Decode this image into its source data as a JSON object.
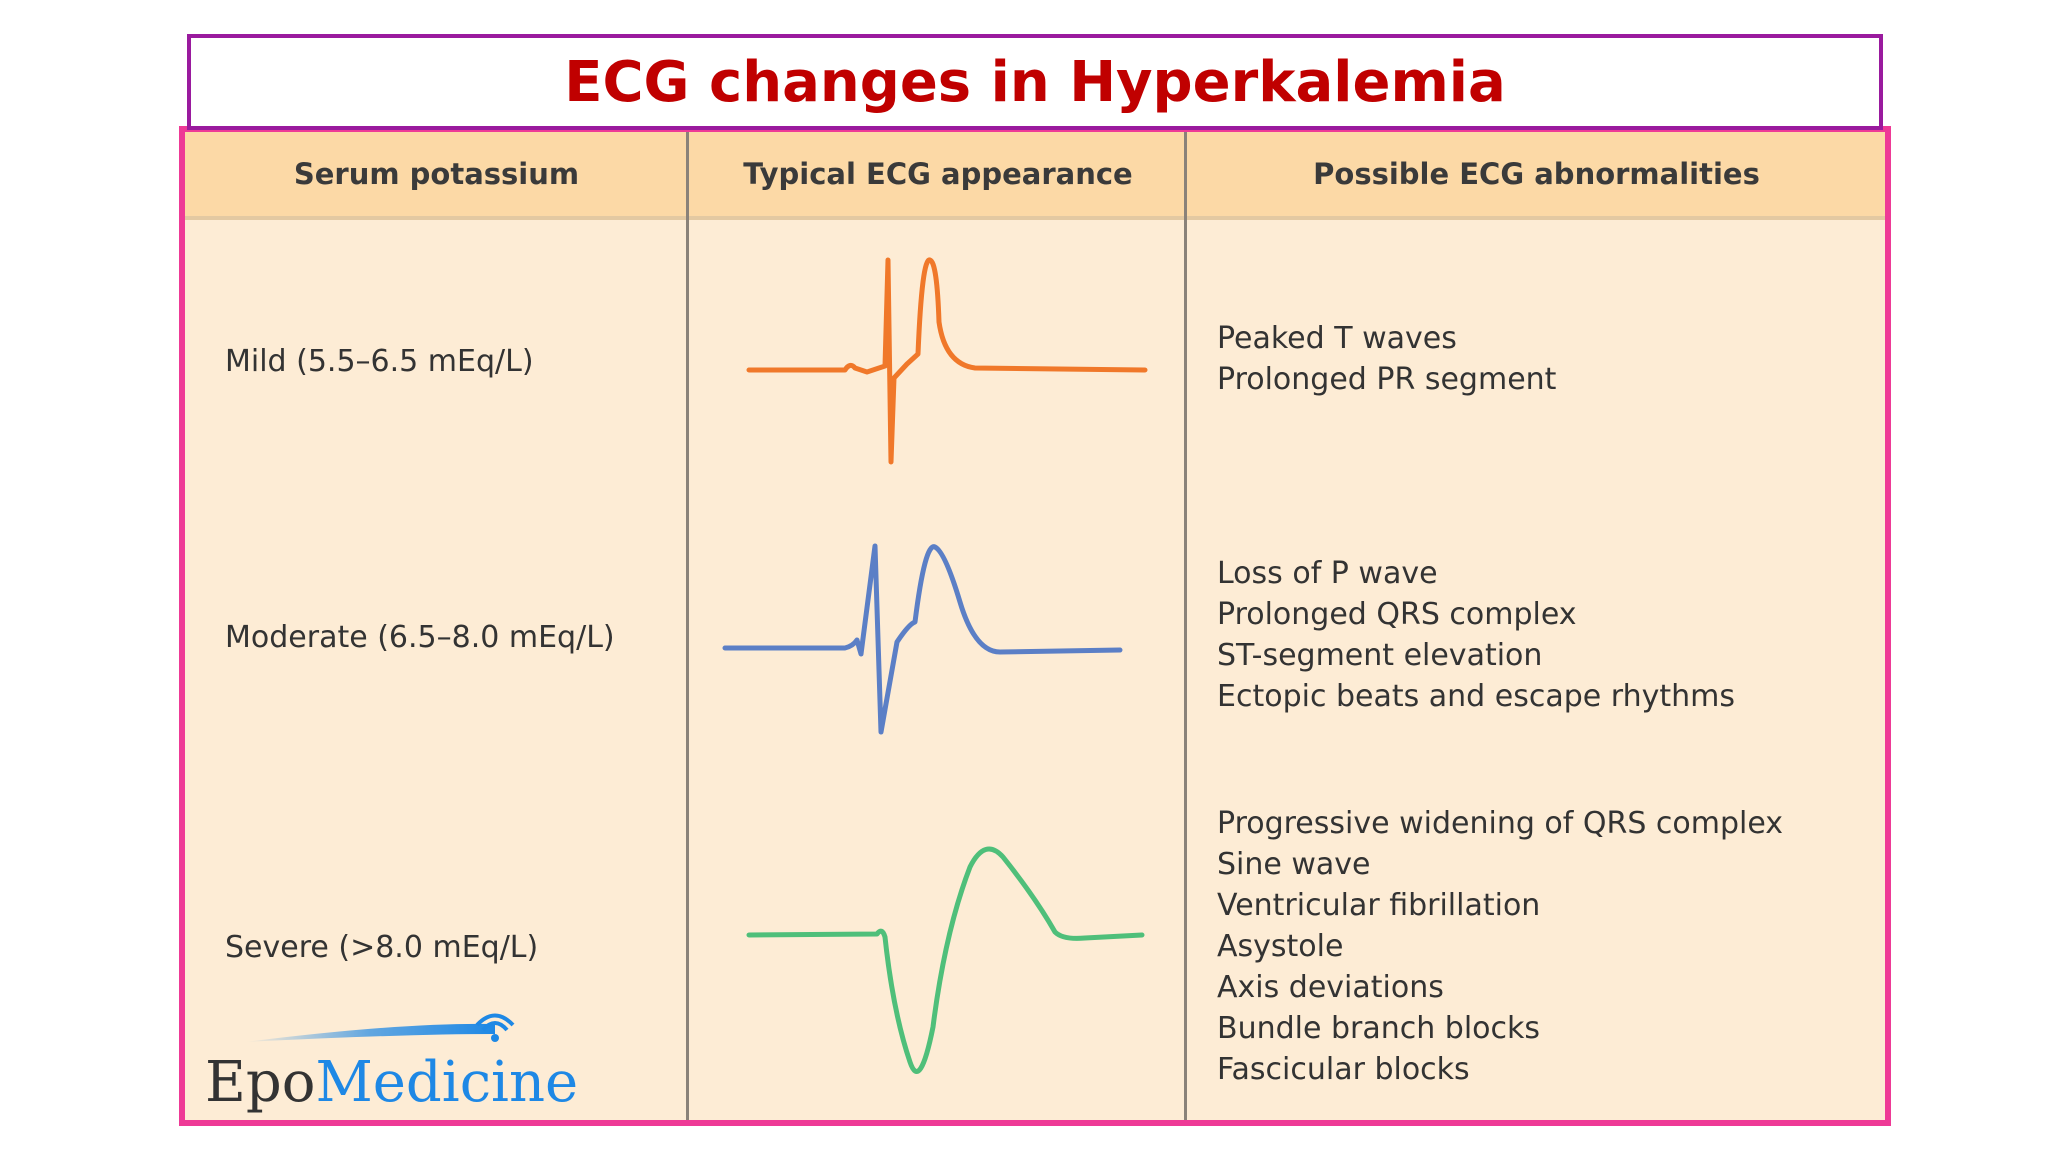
{
  "title": "ECG changes in Hyperkalemia",
  "table": {
    "headers": [
      "Serum potassium",
      "Typical ECG appearance",
      "Possible ECG abnormalities"
    ],
    "rows": [
      {
        "level": "Mild (5.5–6.5 mEq/L)",
        "ecg_color": "#f0782a",
        "abnormalities": [
          "Peaked T waves",
          "Prolonged PR segment"
        ]
      },
      {
        "level": "Moderate (6.5–8.0 mEq/L)",
        "ecg_color": "#5b7fc6",
        "abnormalities": [
          "Loss of P wave",
          "Prolonged QRS complex",
          "ST-segment elevation",
          "Ectopic beats and escape rhythms"
        ]
      },
      {
        "level": "Severe (>8.0 mEq/L)",
        "ecg_color": "#4fbf7a",
        "abnormalities": [
          "Progressive widening of QRS complex",
          "Sine wave",
          "Ventricular fibrillation",
          "Asystole",
          "Axis deviations",
          "Bundle branch blocks",
          "Fascicular blocks"
        ]
      }
    ]
  },
  "logo": {
    "part1": "Epo",
    "part2": "Medicine",
    "brand_color": "#1e88e5"
  },
  "colors": {
    "title": "#c00000",
    "title_border": "#9a1a9e",
    "table_border": "#ee3a96",
    "header_bg": "#fcd9a6",
    "body_bg": "#fdecd5"
  }
}
